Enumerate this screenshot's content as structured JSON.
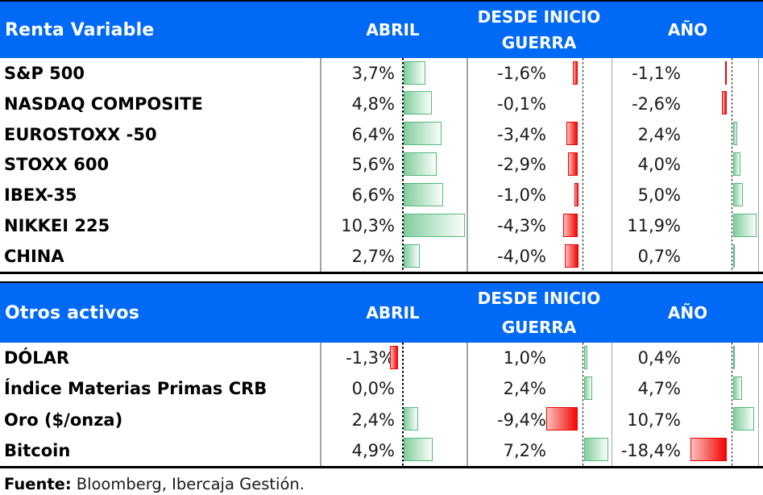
{
  "colors": {
    "header_blue": "#0069f6",
    "positive_bar_border": "#53b97b",
    "negative_bar_border": "#ea0505"
  },
  "tables": [
    {
      "title": "Renta Variable",
      "columns": {
        "abril": "ABRIL",
        "guerra_line1": "DESDE INICIO",
        "guerra_line2": "GUERRA",
        "ano": "AÑO"
      },
      "rows": [
        {
          "label": "S&P 500",
          "display": [
            "3,7%",
            "-1,6%",
            "-1,1%"
          ],
          "values": [
            3.7,
            -1.6,
            -1.1
          ]
        },
        {
          "label": "NASDAQ COMPOSITE",
          "display": [
            "4,8%",
            "-0,1%",
            "-2,6%"
          ],
          "values": [
            4.8,
            -0.1,
            -2.6
          ]
        },
        {
          "label": "EUROSTOXX -50",
          "display": [
            "6,4%",
            "-3,4%",
            "2,4%"
          ],
          "values": [
            6.4,
            -3.4,
            2.4
          ]
        },
        {
          "label": "STOXX 600",
          "display": [
            "5,6%",
            "-2,9%",
            "4,0%"
          ],
          "values": [
            5.6,
            -2.9,
            4.0
          ]
        },
        {
          "label": "IBEX-35",
          "display": [
            "6,6%",
            "-1,0%",
            "5,0%"
          ],
          "values": [
            6.6,
            -1.0,
            5.0
          ]
        },
        {
          "label": "NIKKEI 225",
          "display": [
            "10,3%",
            "-4,3%",
            "11,9%"
          ],
          "values": [
            10.3,
            -4.3,
            11.9
          ]
        },
        {
          "label": "CHINA",
          "display": [
            "2,7%",
            "-4,0%",
            "0,7%"
          ],
          "values": [
            2.7,
            -4.0,
            0.7
          ]
        }
      ]
    },
    {
      "title": "Otros activos",
      "columns": {
        "abril": "ABRIL",
        "guerra_line1": "DESDE INICIO",
        "guerra_line2": "GUERRA",
        "ano": "AÑO"
      },
      "rows": [
        {
          "label": "DÓLAR",
          "display": [
            "-1,3%",
            "1,0%",
            "0,4%"
          ],
          "values": [
            -1.3,
            1.0,
            0.4
          ]
        },
        {
          "label": "Índice Materias Primas CRB",
          "display": [
            "0,0%",
            "2,4%",
            "4,7%"
          ],
          "values": [
            0.0,
            2.4,
            4.7
          ]
        },
        {
          "label": "Oro ($/onza)",
          "display": [
            "2,4%",
            "-9,4%",
            "10,7%"
          ],
          "values": [
            2.4,
            -9.4,
            10.7
          ]
        },
        {
          "label": "Bitcoin",
          "display": [
            "4,9%",
            "7,2%",
            "-18,4%"
          ],
          "values": [
            4.9,
            7.2,
            -18.4
          ]
        }
      ]
    }
  ],
  "footer": {
    "label": "Fuente:",
    "text": "Bloomberg, Ibercaja Gestión."
  },
  "chart_data": [
    {
      "type": "bar",
      "title": "Renta Variable",
      "categories": [
        "S&P 500",
        "NASDAQ COMPOSITE",
        "EUROSTOXX -50",
        "STOXX 600",
        "IBEX-35",
        "NIKKEI 225",
        "CHINA"
      ],
      "series": [
        {
          "name": "ABRIL",
          "values": [
            3.7,
            4.8,
            6.4,
            5.6,
            6.6,
            10.3,
            2.7
          ]
        },
        {
          "name": "DESDE INICIO GUERRA",
          "values": [
            -1.6,
            -0.1,
            -3.4,
            -2.9,
            -1.0,
            -4.3,
            -4.0
          ]
        },
        {
          "name": "AÑO",
          "values": [
            -1.1,
            -2.6,
            2.4,
            4.0,
            5.0,
            11.9,
            0.7
          ]
        }
      ],
      "value_format": "percent, comma decimal",
      "positive_color": "#53b97b",
      "negative_color": "#ea0505",
      "legend_position": "none",
      "grid": false
    },
    {
      "type": "bar",
      "title": "Otros activos",
      "categories": [
        "DÓLAR",
        "Índice Materias Primas CRB",
        "Oro ($/onza)",
        "Bitcoin"
      ],
      "series": [
        {
          "name": "ABRIL",
          "values": [
            -1.3,
            0.0,
            2.4,
            4.9
          ]
        },
        {
          "name": "DESDE INICIO GUERRA",
          "values": [
            1.0,
            2.4,
            -9.4,
            7.2
          ]
        },
        {
          "name": "AÑO",
          "values": [
            0.4,
            4.7,
            10.7,
            -18.4
          ]
        }
      ],
      "value_format": "percent, comma decimal",
      "positive_color": "#53b97b",
      "negative_color": "#ea0505",
      "legend_position": "none",
      "grid": false
    }
  ]
}
